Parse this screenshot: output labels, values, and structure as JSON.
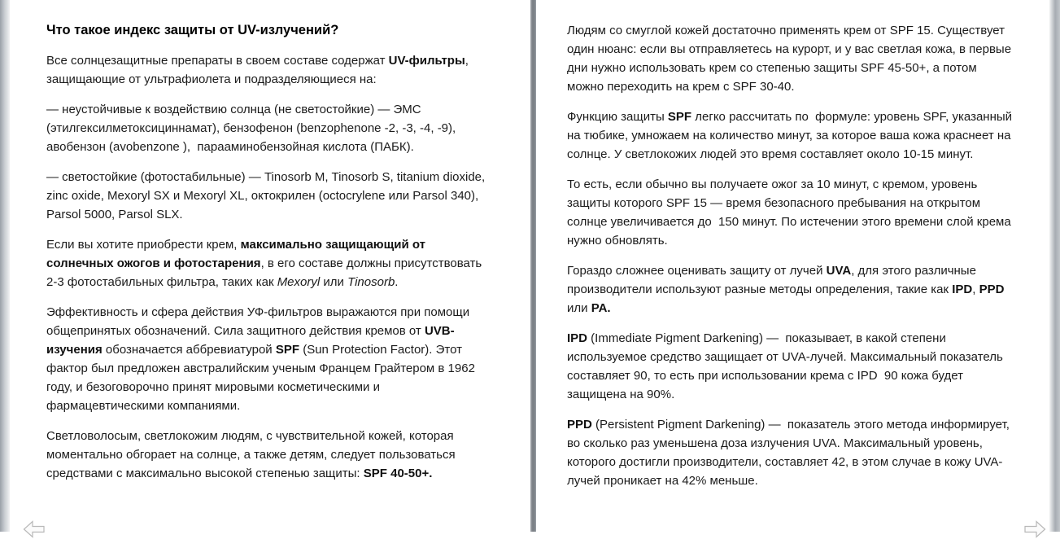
{
  "colors": {
    "page_background": "#ffffff",
    "body_text": "#1b1b1b",
    "heading_text": "#000000",
    "gutter_divider": "#7c8187",
    "page_stack_edge": "#9aa0a8",
    "corner_arrow": "#b8b8b8"
  },
  "icons": {
    "prev": "page-turn-left-icon",
    "next": "page-turn-right-icon"
  },
  "left_page": {
    "heading": "Что такое индекс защиты от UV-излучений?",
    "paragraphs": [
      [
        {
          "t": "Все солнцезащитные препараты в своем составе содержат "
        },
        {
          "t": "UV-фильтры",
          "b": true
        },
        {
          "t": ", защищающие от ультрафиолета и подразделяющиеся на:"
        }
      ],
      [
        {
          "t": "— неустойчивые к воздействию солнца (не светостойкие) — ЭМС (этилгексилметоксициннамат), бензофенон (benzophenone -2, -3, -4, -9), авобензон (avobenzone ),  парааминобензойная кислота (ПАБК)."
        }
      ],
      [
        {
          "t": "— светостойкие (фотостабильные) — Tinosorb M, Tinosorb S, titanium dioxide, zinc oxide, Mexoryl SX и Mexoryl XL, октокрилен (octocrylene или Parsol 340), Parsol 5000, Parsol SLX."
        }
      ],
      [
        {
          "t": "Если вы хотите приобрести крем, "
        },
        {
          "t": "максимально защищающий от солнечных ожогов и фотостарения",
          "b": true
        },
        {
          "t": ", в его составе должны присутствовать 2-3 фотостабильных фильтра, таких как "
        },
        {
          "t": "Mexoryl",
          "i": true
        },
        {
          "t": " или "
        },
        {
          "t": "Tinosorb",
          "i": true
        },
        {
          "t": "."
        }
      ],
      [
        {
          "t": "Эффективность и сфера действия УФ-фильтров выражаются при помощи общепринятых обозначений. Сила защитного действия кремов от "
        },
        {
          "t": "UVB-изучения",
          "b": true
        },
        {
          "t": " обозначается аббревиатурой "
        },
        {
          "t": "SPF",
          "b": true
        },
        {
          "t": " (Sun Protection Factor). Этот фактор был предложен австралийским ученым Францем Грайтером в 1962 году, и безоговорочно принят мировыми косметическими и фармацевтическими компаниями."
        }
      ],
      [
        {
          "t": "Светловолосым, светлокожим людям, с чувствительной кожей, которая моментально обгорает на солнце, а также детям, следует пользоваться средствами с максимально высокой степенью защиты: "
        },
        {
          "t": "SPF 40-50+.",
          "b": true
        }
      ]
    ]
  },
  "right_page": {
    "paragraphs": [
      [
        {
          "t": "Людям со смуглой кожей достаточно применять крем от SPF 15. Существует один нюанс: если вы отправляетесь на курорт, и у вас светлая кожа, в первые дни нужно использовать крем со степенью защиты SPF 45-50+, а потом можно переходить на крем с SPF 30-40."
        }
      ],
      [
        {
          "t": "Функцию защиты "
        },
        {
          "t": "SPF",
          "b": true
        },
        {
          "t": " легко рассчитать по  формуле: уровень SPF, указанный на тюбике, умножаем на количество минут, за которое ваша кожа краснеет на солнце. У светлокожих людей это время составляет около 10-15 минут."
        }
      ],
      [
        {
          "t": "То есть, если обычно вы получаете ожог за 10 минут, с кремом, уровень защиты которого SPF 15 — время безопасного пребывания на открытом солнце увеличивается до  150 минут. По истечении этого времени слой крема нужно обновлять."
        }
      ],
      [
        {
          "t": "Гораздо сложнее оценивать защиту от лучей "
        },
        {
          "t": "UVA",
          "b": true
        },
        {
          "t": ", для этого различные производители используют разные методы определения, такие как "
        },
        {
          "t": "IPD",
          "b": true
        },
        {
          "t": ", "
        },
        {
          "t": "PPD",
          "b": true
        },
        {
          "t": " или "
        },
        {
          "t": "PA.",
          "b": true
        }
      ],
      [
        {
          "t": "IPD",
          "b": true
        },
        {
          "t": " (Immediate Pigment Darkening) —  показывает, в какой степени используемое средство защищает от UVA-лучей. Максимальный показатель составляет 90, то есть при использовании крема с IPD  90 кожа будет защищена на 90%."
        }
      ],
      [
        {
          "t": "PPD",
          "b": true
        },
        {
          "t": " (Persistent Pigment Darkening) —  показатель этого метода информирует, во сколько раз уменьшена доза излучения UVA. Максимальный уровень, которого достигли производители, составляет 42, в этом случае в кожу UVA-лучей проникает на 42% меньше."
        }
      ]
    ]
  }
}
